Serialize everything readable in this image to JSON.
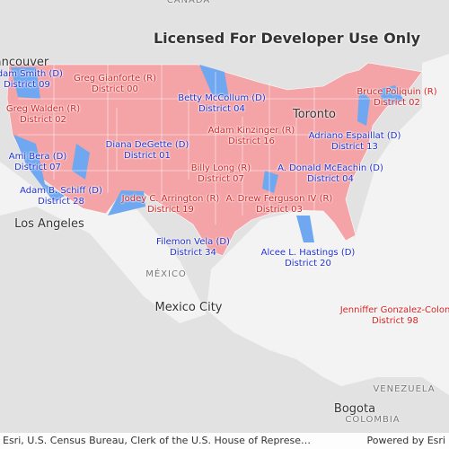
{
  "header": {
    "title": "Licensed For Developer Use Only"
  },
  "labels": [
    {
      "name": "Adam Smith (D)",
      "district": "District 09"
    },
    {
      "name": "Greg Gianforte (R)",
      "district": "District 00"
    },
    {
      "name": "Betty McCollum (D)",
      "district": "District 04"
    },
    {
      "name": "Bruce Poliquin (R)",
      "district": "District 02"
    },
    {
      "name": "Greg Walden (R)",
      "district": "District 02"
    },
    {
      "name": "Adam Kinzinger (R)",
      "district": "District 16"
    },
    {
      "name": "Adriano Espaillat (D)",
      "district": "District 13"
    },
    {
      "name": "Diana DeGette (D)",
      "district": "District 01"
    },
    {
      "name": "Ami Bera (D)",
      "district": "District 07"
    },
    {
      "name": "Billy Long (R)",
      "district": "District 07"
    },
    {
      "name": "A. Donald McEachin (D)",
      "district": "District 04"
    },
    {
      "name": "Adam B. Schiff (D)",
      "district": "District 28"
    },
    {
      "name": "Jodey C. Arrington (R)",
      "district": "District 19"
    },
    {
      "name": "A. Drew Ferguson IV (R)",
      "district": "District 03"
    },
    {
      "name": "Filemon Vela (D)",
      "district": "District 34"
    },
    {
      "name": "Alcee L. Hastings (D)",
      "district": "District 20"
    },
    {
      "name": "Jenniffer Gonzalez-Colon",
      "district": "District 98"
    }
  ],
  "places": {
    "countries": [
      "CANADA",
      "MÉXICO",
      "VENEZUELA",
      "COLOMBIA"
    ],
    "cities": [
      "Vancouver",
      "Toronto",
      "Los Angeles",
      "Mexico City",
      "Bogota"
    ]
  },
  "attribution": {
    "source": "Esri, U.S. Census Bureau, Clerk of the U.S. House of Represe…",
    "powered": "Powered by Esri"
  }
}
